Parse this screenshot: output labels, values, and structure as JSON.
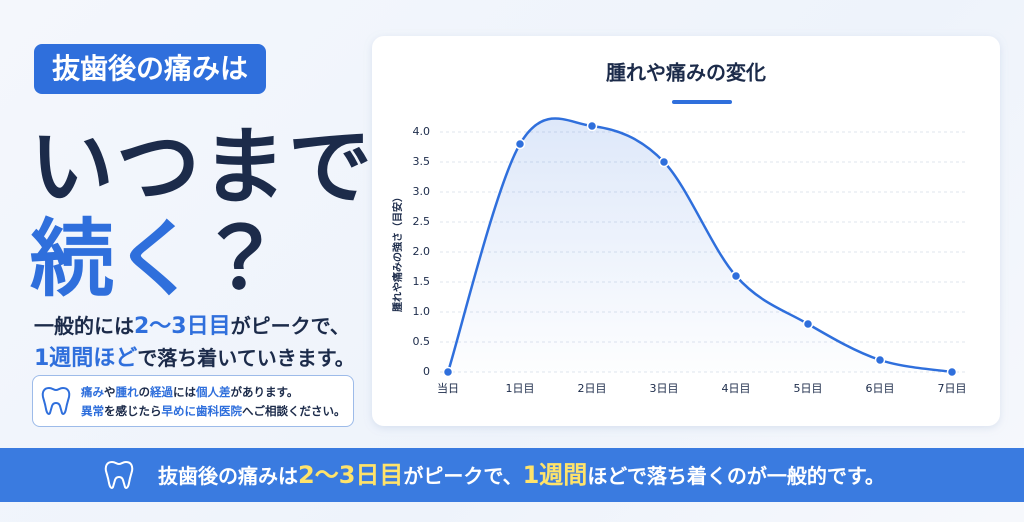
{
  "headline": {
    "badge": "抜歯後の痛みは",
    "line1": "いつまで",
    "line2": [
      "続く",
      "？"
    ]
  },
  "lead": {
    "line1": [
      "一般的には",
      "2〜3日目",
      "がピークで、"
    ],
    "line2": [
      "1週間ほど",
      "で落ち着いていきます。"
    ]
  },
  "note": {
    "line1": [
      "痛み",
      "や",
      "腫れ",
      "の",
      "経過",
      "には",
      "個人差",
      "があります。"
    ],
    "line2": [
      "異常",
      "を感じたら",
      "早めに",
      "歯科医院",
      "へご相談ください。"
    ]
  },
  "banner": [
    "抜歯後の痛みは",
    "2〜3日目",
    "がピークで、",
    "1週間",
    "ほどで落ち着くのが一般的です。"
  ],
  "chart_data": {
    "type": "line",
    "title": "腫れや痛みの変化",
    "y_label": "腫れや痛みの強さ（目安）",
    "categories": [
      "当日",
      "1日目",
      "2日目",
      "3日目",
      "4日目",
      "5日目",
      "6日目",
      "7日目"
    ],
    "values": [
      0,
      3.8,
      4.1,
      3.5,
      1.6,
      0.8,
      0.2,
      0
    ],
    "color": "#2f6fdc",
    "ylim": [
      0,
      4.2
    ],
    "yticks": [
      0,
      0.5,
      {
        "value": 1,
        "label": "1.0"
      },
      1.5,
      {
        "value": 2,
        "label": "2.0"
      },
      2.5,
      {
        "value": 3,
        "label": "3.0"
      },
      3.5,
      {
        "value": 4,
        "label": "4.0"
      }
    ],
    "grid": true
  }
}
